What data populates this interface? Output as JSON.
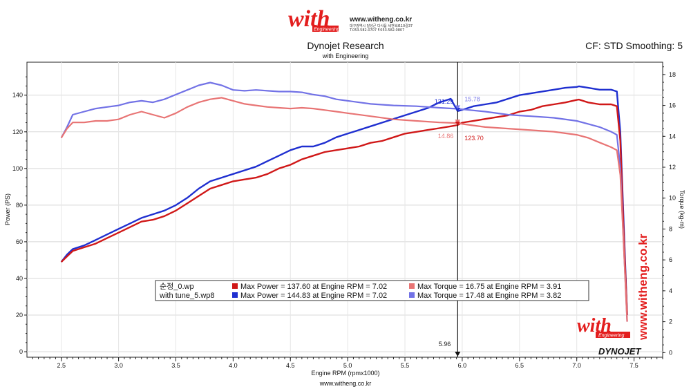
{
  "header": {
    "logo_text": "with",
    "logo_sub": "Engineering",
    "site": "www.witheng.co.kr",
    "address_line": "대구광역시 달성군 다사읍 세천북로10길37",
    "phone_line": "T.053.582.0707  F.053.582.0807"
  },
  "chart_data": {
    "type": "line",
    "title": "Dynojet Research",
    "subtitle": "with Engineering",
    "corner_text": "CF: STD Smoothing: 5",
    "xlabel": "Engine RPM (rpmx1000)",
    "ylabel": "Power (PS)",
    "y2label": "Torque (kg-m)",
    "footer": "www.witheng.co.kr",
    "xlim": [
      2.2,
      7.75
    ],
    "ylim": [
      -3,
      158
    ],
    "y2lim": [
      -0.3,
      18.8
    ],
    "x_ticks": [
      "2.5",
      "3.0",
      "3.5",
      "4.0",
      "4.5",
      "5.0",
      "5.5",
      "6.0",
      "6.5",
      "7.0",
      "7.5"
    ],
    "y_ticks": [
      "0",
      "20",
      "40",
      "60",
      "80",
      "100",
      "120",
      "140"
    ],
    "y2_ticks": [
      "0",
      "2",
      "4",
      "6",
      "8",
      "10",
      "12",
      "14",
      "16",
      "18"
    ],
    "cursor": {
      "x": 5.96,
      "label": "5.96"
    },
    "readouts": [
      {
        "text": "131.29",
        "x": 5.96,
        "y": 131.29,
        "axis": "left",
        "color": "#1f2fd0"
      },
      {
        "text": "15.78",
        "x": 5.96,
        "y": 15.78,
        "axis": "right",
        "color": "#7b7be8"
      },
      {
        "text": "14.86",
        "x": 5.96,
        "y": 14.86,
        "axis": "right",
        "color": "#e87878"
      },
      {
        "text": "123.70",
        "x": 5.96,
        "y": 123.7,
        "axis": "left",
        "color": "#d01818"
      }
    ],
    "series": [
      {
        "name": "with tune_5.wp8 Power",
        "axis": "left",
        "color": "#1f2fd0",
        "width": 2.4,
        "points": [
          [
            2.5,
            49
          ],
          [
            2.55,
            53
          ],
          [
            2.6,
            56
          ],
          [
            2.7,
            58
          ],
          [
            2.8,
            61
          ],
          [
            2.9,
            64
          ],
          [
            3.0,
            67
          ],
          [
            3.1,
            70
          ],
          [
            3.2,
            73
          ],
          [
            3.3,
            75
          ],
          [
            3.4,
            77
          ],
          [
            3.5,
            80
          ],
          [
            3.6,
            84
          ],
          [
            3.7,
            89
          ],
          [
            3.8,
            93
          ],
          [
            3.9,
            95
          ],
          [
            4.0,
            97
          ],
          [
            4.1,
            99
          ],
          [
            4.2,
            101
          ],
          [
            4.3,
            104
          ],
          [
            4.4,
            107
          ],
          [
            4.5,
            110
          ],
          [
            4.6,
            112
          ],
          [
            4.7,
            112
          ],
          [
            4.8,
            114
          ],
          [
            4.9,
            117
          ],
          [
            5.0,
            119
          ],
          [
            5.1,
            121
          ],
          [
            5.2,
            123
          ],
          [
            5.3,
            125
          ],
          [
            5.4,
            127
          ],
          [
            5.5,
            129
          ],
          [
            5.6,
            131
          ],
          [
            5.7,
            133
          ],
          [
            5.8,
            136
          ],
          [
            5.9,
            138
          ],
          [
            5.96,
            131.29
          ],
          [
            6.0,
            132
          ],
          [
            6.1,
            134
          ],
          [
            6.2,
            135
          ],
          [
            6.3,
            136
          ],
          [
            6.4,
            138
          ],
          [
            6.5,
            140
          ],
          [
            6.6,
            141
          ],
          [
            6.7,
            142
          ],
          [
            6.8,
            143
          ],
          [
            6.9,
            144
          ],
          [
            7.0,
            144.5
          ],
          [
            7.02,
            144.83
          ],
          [
            7.1,
            144
          ],
          [
            7.2,
            143
          ],
          [
            7.3,
            143
          ],
          [
            7.35,
            142
          ],
          [
            7.38,
            120
          ],
          [
            7.41,
            70
          ],
          [
            7.44,
            20
          ]
        ]
      },
      {
        "name": "순정_0.wp Power",
        "axis": "left",
        "color": "#d01818",
        "width": 2.4,
        "points": [
          [
            2.5,
            49
          ],
          [
            2.55,
            52
          ],
          [
            2.6,
            55
          ],
          [
            2.7,
            57
          ],
          [
            2.8,
            59
          ],
          [
            2.9,
            62
          ],
          [
            3.0,
            65
          ],
          [
            3.1,
            68
          ],
          [
            3.2,
            71
          ],
          [
            3.3,
            72
          ],
          [
            3.4,
            74
          ],
          [
            3.5,
            77
          ],
          [
            3.6,
            81
          ],
          [
            3.7,
            85
          ],
          [
            3.8,
            89
          ],
          [
            3.9,
            91
          ],
          [
            4.0,
            93
          ],
          [
            4.1,
            94
          ],
          [
            4.2,
            95
          ],
          [
            4.3,
            97
          ],
          [
            4.4,
            100
          ],
          [
            4.5,
            102
          ],
          [
            4.6,
            105
          ],
          [
            4.7,
            107
          ],
          [
            4.8,
            109
          ],
          [
            4.9,
            110
          ],
          [
            5.0,
            111
          ],
          [
            5.1,
            112
          ],
          [
            5.2,
            114
          ],
          [
            5.3,
            115
          ],
          [
            5.4,
            117
          ],
          [
            5.5,
            119
          ],
          [
            5.6,
            120
          ],
          [
            5.7,
            121
          ],
          [
            5.8,
            122
          ],
          [
            5.9,
            123
          ],
          [
            5.96,
            123.7
          ],
          [
            6.0,
            125
          ],
          [
            6.1,
            126
          ],
          [
            6.2,
            127
          ],
          [
            6.3,
            128
          ],
          [
            6.4,
            129
          ],
          [
            6.5,
            131
          ],
          [
            6.6,
            132
          ],
          [
            6.7,
            134
          ],
          [
            6.8,
            135
          ],
          [
            6.9,
            136
          ],
          [
            7.0,
            137.4
          ],
          [
            7.02,
            137.6
          ],
          [
            7.1,
            136
          ],
          [
            7.2,
            135
          ],
          [
            7.3,
            135
          ],
          [
            7.35,
            134
          ],
          [
            7.38,
            115
          ],
          [
            7.41,
            65
          ],
          [
            7.44,
            20
          ]
        ]
      },
      {
        "name": "with tune_5.wp8 Torque",
        "axis": "right",
        "color": "#7272e6",
        "width": 2.2,
        "points": [
          [
            2.5,
            13.9
          ],
          [
            2.55,
            14.6
          ],
          [
            2.6,
            15.4
          ],
          [
            2.7,
            15.6
          ],
          [
            2.8,
            15.8
          ],
          [
            2.9,
            15.9
          ],
          [
            3.0,
            16.0
          ],
          [
            3.1,
            16.2
          ],
          [
            3.2,
            16.3
          ],
          [
            3.3,
            16.2
          ],
          [
            3.4,
            16.4
          ],
          [
            3.5,
            16.7
          ],
          [
            3.6,
            17.0
          ],
          [
            3.7,
            17.3
          ],
          [
            3.8,
            17.48
          ],
          [
            3.9,
            17.3
          ],
          [
            4.0,
            17.0
          ],
          [
            4.1,
            16.95
          ],
          [
            4.2,
            17.0
          ],
          [
            4.3,
            16.95
          ],
          [
            4.4,
            16.9
          ],
          [
            4.5,
            16.9
          ],
          [
            4.6,
            16.85
          ],
          [
            4.7,
            16.7
          ],
          [
            4.8,
            16.6
          ],
          [
            4.9,
            16.4
          ],
          [
            5.0,
            16.3
          ],
          [
            5.2,
            16.1
          ],
          [
            5.4,
            16.0
          ],
          [
            5.6,
            15.95
          ],
          [
            5.8,
            15.85
          ],
          [
            5.96,
            15.78
          ],
          [
            6.0,
            15.75
          ],
          [
            6.2,
            15.6
          ],
          [
            6.4,
            15.4
          ],
          [
            6.6,
            15.3
          ],
          [
            6.8,
            15.2
          ],
          [
            7.0,
            15.0
          ],
          [
            7.1,
            14.8
          ],
          [
            7.2,
            14.6
          ],
          [
            7.3,
            14.3
          ],
          [
            7.35,
            14.1
          ],
          [
            7.38,
            12.0
          ],
          [
            7.41,
            7.0
          ],
          [
            7.44,
            2.0
          ]
        ]
      },
      {
        "name": "순정_0.wp Torque",
        "axis": "right",
        "color": "#e87474",
        "width": 2.2,
        "points": [
          [
            2.5,
            13.9
          ],
          [
            2.55,
            14.5
          ],
          [
            2.6,
            14.9
          ],
          [
            2.7,
            14.9
          ],
          [
            2.8,
            15.0
          ],
          [
            2.9,
            15.0
          ],
          [
            3.0,
            15.1
          ],
          [
            3.1,
            15.4
          ],
          [
            3.2,
            15.6
          ],
          [
            3.3,
            15.4
          ],
          [
            3.4,
            15.2
          ],
          [
            3.5,
            15.5
          ],
          [
            3.6,
            15.9
          ],
          [
            3.7,
            16.2
          ],
          [
            3.8,
            16.4
          ],
          [
            3.9,
            16.5
          ],
          [
            4.0,
            16.3
          ],
          [
            4.1,
            16.1
          ],
          [
            4.2,
            16.0
          ],
          [
            4.3,
            15.9
          ],
          [
            4.4,
            15.85
          ],
          [
            4.5,
            15.8
          ],
          [
            4.6,
            15.85
          ],
          [
            4.7,
            15.8
          ],
          [
            4.8,
            15.7
          ],
          [
            4.9,
            15.6
          ],
          [
            5.0,
            15.5
          ],
          [
            5.2,
            15.3
          ],
          [
            5.4,
            15.1
          ],
          [
            5.6,
            15.0
          ],
          [
            5.8,
            14.9
          ],
          [
            5.96,
            14.86
          ],
          [
            6.0,
            14.8
          ],
          [
            6.2,
            14.6
          ],
          [
            6.4,
            14.5
          ],
          [
            6.6,
            14.4
          ],
          [
            6.8,
            14.3
          ],
          [
            7.0,
            14.1
          ],
          [
            7.1,
            13.9
          ],
          [
            7.2,
            13.6
          ],
          [
            7.3,
            13.3
          ],
          [
            7.35,
            13.1
          ],
          [
            7.38,
            11.5
          ],
          [
            7.41,
            7.0
          ],
          [
            7.44,
            2.0
          ]
        ]
      }
    ],
    "legend": {
      "placement": "bottom-center",
      "rows": [
        {
          "file": "순정_0.wp",
          "power_color": "#d01818",
          "power_text": "Max Power = 137.60 at Engine RPM = 7.02",
          "torque_color": "#e87474",
          "torque_text": "Max Torque = 16.75 at Engine RPM = 3.91"
        },
        {
          "file": "with tune_5.wp8",
          "power_color": "#1f2fd0",
          "power_text": "Max Power = 144.83 at Engine RPM = 7.02",
          "torque_color": "#7272e6",
          "torque_text": "Max Torque = 17.48 at Engine RPM = 3.82"
        }
      ]
    },
    "watermarks": {
      "vertical_site": "www.witheng.co.kr",
      "logo_text": "with",
      "logo_sub": "Engineering",
      "brand": "DYNOJET"
    }
  }
}
